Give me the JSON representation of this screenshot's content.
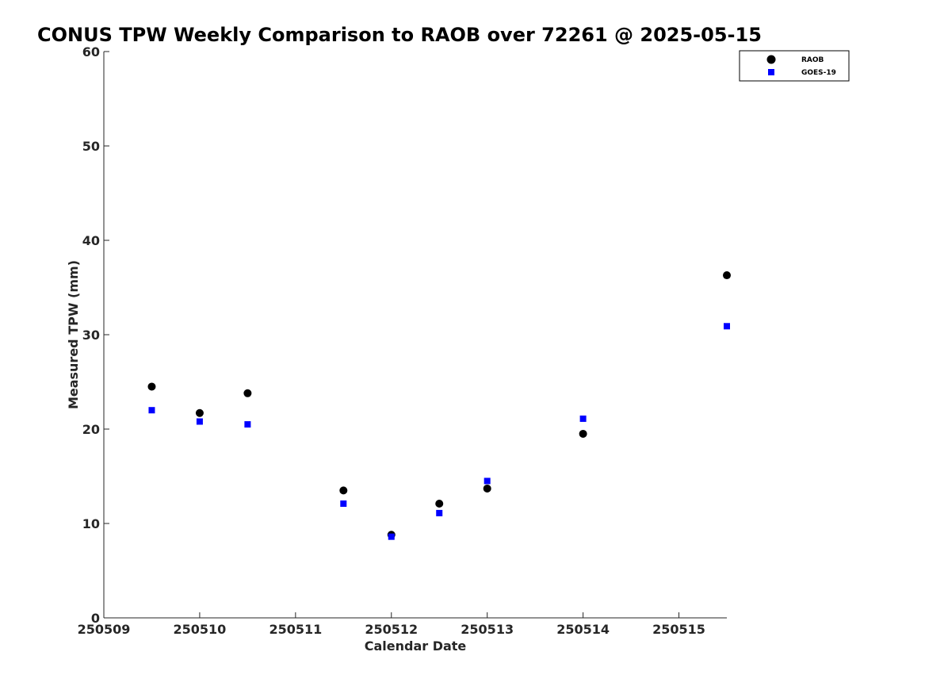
{
  "chart_data": {
    "type": "scatter",
    "title": "CONUS TPW Weekly Comparison to RAOB over 72261 @ 2025-05-15",
    "xlabel": "Calendar Date",
    "ylabel": "Measured TPW (mm)",
    "xlim": [
      0,
      6.5
    ],
    "ylim": [
      0,
      60
    ],
    "x_ticks": [
      {
        "value": 0,
        "label": "250509"
      },
      {
        "value": 1,
        "label": "250510"
      },
      {
        "value": 2,
        "label": "250511"
      },
      {
        "value": 3,
        "label": "250512"
      },
      {
        "value": 4,
        "label": "250513"
      },
      {
        "value": 5,
        "label": "250514"
      },
      {
        "value": 6,
        "label": "250515"
      }
    ],
    "y_ticks": [
      {
        "value": 0,
        "label": "0"
      },
      {
        "value": 10,
        "label": "10"
      },
      {
        "value": 20,
        "label": "20"
      },
      {
        "value": 30,
        "label": "30"
      },
      {
        "value": 40,
        "label": "40"
      },
      {
        "value": 50,
        "label": "50"
      },
      {
        "value": 60,
        "label": "60"
      }
    ],
    "grid": false,
    "legend_position": "top-right",
    "series": [
      {
        "name": "RAOB",
        "marker": "circle",
        "color": "#000000",
        "points": [
          {
            "x": 0.5,
            "y": 24.5
          },
          {
            "x": 1.0,
            "y": 21.7
          },
          {
            "x": 1.5,
            "y": 23.8
          },
          {
            "x": 2.5,
            "y": 13.5
          },
          {
            "x": 3.0,
            "y": 8.8
          },
          {
            "x": 3.5,
            "y": 12.1
          },
          {
            "x": 4.0,
            "y": 13.7
          },
          {
            "x": 5.0,
            "y": 19.5
          },
          {
            "x": 6.5,
            "y": 36.3
          }
        ]
      },
      {
        "name": "GOES-19",
        "marker": "square",
        "color": "#0000ff",
        "points": [
          {
            "x": 0.5,
            "y": 22.0
          },
          {
            "x": 1.0,
            "y": 20.8
          },
          {
            "x": 1.5,
            "y": 20.5
          },
          {
            "x": 2.5,
            "y": 12.1
          },
          {
            "x": 3.0,
            "y": 8.6
          },
          {
            "x": 3.5,
            "y": 11.1
          },
          {
            "x": 4.0,
            "y": 14.5
          },
          {
            "x": 5.0,
            "y": 21.1
          },
          {
            "x": 6.5,
            "y": 30.9
          }
        ]
      }
    ]
  }
}
